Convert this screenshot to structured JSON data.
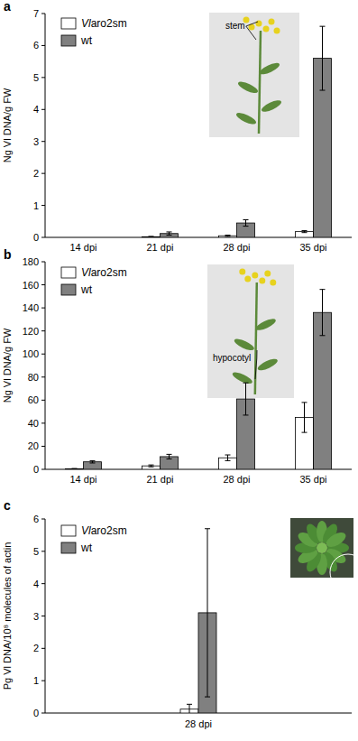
{
  "chart_data": [
    {
      "type": "bar",
      "title": "a",
      "ylabel": "Ng Vl DNA/g FW",
      "categories": [
        "14 dpi",
        "21 dpi",
        "28 dpi",
        "35 dpi"
      ],
      "series": [
        {
          "name": "Vlaro2sm",
          "color": "#ffffff",
          "values": [
            0,
            0.02,
            0.05,
            0.18
          ],
          "errors": [
            0,
            0.01,
            0.02,
            0.03
          ]
        },
        {
          "name": "wt",
          "color": "#808080",
          "values": [
            0,
            0.12,
            0.45,
            5.6
          ],
          "errors": [
            0,
            0.05,
            0.1,
            1.0
          ]
        }
      ],
      "ylim": [
        0,
        7
      ],
      "yticks": [
        0,
        1,
        2,
        3,
        4,
        5,
        6,
        7
      ],
      "legend": "top-left",
      "annotations": [
        "stem"
      ]
    },
    {
      "type": "bar",
      "title": "b",
      "ylabel": "Ng Vl DNA/g FW",
      "categories": [
        "14 dpi",
        "21 dpi",
        "28 dpi",
        "35 dpi"
      ],
      "series": [
        {
          "name": "Vlaro2sm",
          "color": "#ffffff",
          "values": [
            0.5,
            3,
            10,
            45
          ],
          "errors": [
            0.2,
            0.8,
            2.5,
            13
          ]
        },
        {
          "name": "wt",
          "color": "#808080",
          "values": [
            6.5,
            11,
            61,
            136
          ],
          "errors": [
            1,
            2,
            14,
            20
          ]
        }
      ],
      "ylim": [
        0,
        180
      ],
      "yticks": [
        0,
        20,
        40,
        60,
        80,
        100,
        120,
        140,
        160,
        180
      ],
      "legend": "top-left",
      "annotations": [
        "hypocotyl"
      ]
    },
    {
      "type": "bar",
      "title": "c",
      "ylabel": "Pg Vl DNA/10⁸ molecules of actin",
      "categories": [
        "28 dpi"
      ],
      "series": [
        {
          "name": "Vlaro2sm",
          "color": "#ffffff",
          "values": [
            0.12
          ],
          "errors": [
            0.15
          ]
        },
        {
          "name": "wt",
          "color": "#808080",
          "values": [
            3.1
          ],
          "errors": [
            2.6
          ]
        }
      ],
      "ylim": [
        0,
        6
      ],
      "yticks": [
        0,
        1,
        2,
        3,
        4,
        5,
        6
      ],
      "legend": "top-left",
      "annotations": []
    }
  ]
}
